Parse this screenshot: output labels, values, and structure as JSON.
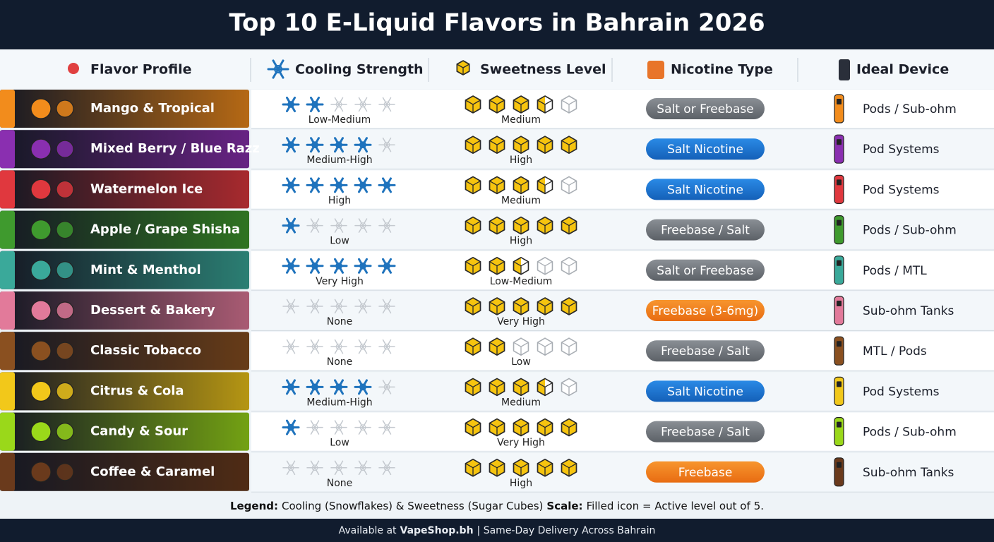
{
  "title": "Top 10 E-Liquid Flavors in Bahrain 2026",
  "headers": [
    "Flavor Profile",
    "Cooling Strength",
    "Sweetness Level",
    "Nicotine Type",
    "Ideal Device"
  ],
  "rows": [
    {
      "flavor": "Mango & Tropical",
      "color": "#f28c1c",
      "cooling": 2,
      "cooling_label": "Low-Medium",
      "sweetness": 3.5,
      "sweetness_label": "Medium",
      "nicotine": "Salt or Freebase",
      "nicotine_style": "gray",
      "device": "Pods / Sub-ohm"
    },
    {
      "flavor": "Mixed Berry / Blue Razz",
      "color": "#8a2fb0",
      "cooling": 4,
      "cooling_label": "Medium-High",
      "sweetness": 5,
      "sweetness_label": "High",
      "nicotine": "Salt Nicotine",
      "nicotine_style": "blue",
      "device": "Pod Systems"
    },
    {
      "flavor": "Watermelon Ice",
      "color": "#e0383e",
      "cooling": 5,
      "cooling_label": "High",
      "sweetness": 3.5,
      "sweetness_label": "Medium",
      "nicotine": "Salt Nicotine",
      "nicotine_style": "blue",
      "device": "Pod Systems"
    },
    {
      "flavor": "Apple / Grape Shisha",
      "color": "#3f9a2e",
      "cooling": 1,
      "cooling_label": "Low",
      "sweetness": 5,
      "sweetness_label": "High",
      "nicotine": "Freebase / Salt",
      "nicotine_style": "gray",
      "device": "Pods / Sub-ohm"
    },
    {
      "flavor": "Mint & Menthol",
      "color": "#3aa99a",
      "cooling": 5,
      "cooling_label": "Very High",
      "sweetness": 2.5,
      "sweetness_label": "Low-Medium",
      "nicotine": "Salt or Freebase",
      "nicotine_style": "gray",
      "device": "Pods / MTL"
    },
    {
      "flavor": "Dessert & Bakery",
      "color": "#e27a9a",
      "cooling": 0,
      "cooling_label": "None",
      "sweetness": 5,
      "sweetness_label": "Very High",
      "nicotine": "Freebase (3-6mg)",
      "nicotine_style": "orange",
      "device": "Sub-ohm Tanks"
    },
    {
      "flavor": "Classic Tobacco",
      "color": "#8a5020",
      "cooling": 0,
      "cooling_label": "None",
      "sweetness": 2,
      "sweetness_label": "Low",
      "nicotine": "Freebase / Salt",
      "nicotine_style": "gray",
      "device": "MTL / Pods"
    },
    {
      "flavor": "Citrus & Cola",
      "color": "#f2c81a",
      "cooling": 4,
      "cooling_label": "Medium-High",
      "sweetness": 3.5,
      "sweetness_label": "Medium",
      "nicotine": "Salt Nicotine",
      "nicotine_style": "blue",
      "device": "Pod Systems"
    },
    {
      "flavor": "Candy & Sour",
      "color": "#9ad81a",
      "cooling": 1,
      "cooling_label": "Low",
      "sweetness": 5,
      "sweetness_label": "Very High",
      "nicotine": "Freebase / Salt",
      "nicotine_style": "gray",
      "device": "Pods / Sub-ohm"
    },
    {
      "flavor": "Coffee & Caramel",
      "color": "#6a3a1c",
      "cooling": 0,
      "cooling_label": "None",
      "sweetness": 5,
      "sweetness_label": "High",
      "nicotine": "Freebase",
      "nicotine_style": "orange",
      "device": "Sub-ohm Tanks"
    }
  ],
  "legend": {
    "key_label": "Legend:",
    "key_text": "Cooling (Snowflakes) & Sweetness (Sugar Cubes)",
    "scale_label": "Scale:",
    "scale_text": "Filled icon = Active level out of",
    "scale_max": 5,
    "end": "."
  },
  "footer": {
    "prefix": "Available at",
    "brand": "VapeShop.bh",
    "suffix": "| Same-Day Delivery Across Bahrain"
  }
}
